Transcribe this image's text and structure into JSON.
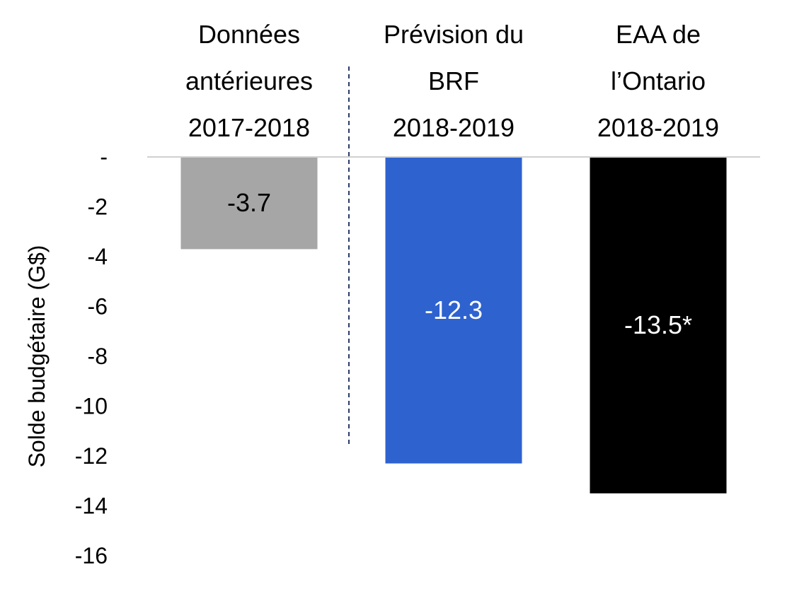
{
  "chart_data": {
    "type": "bar",
    "categories": [
      [
        "Données",
        "antérieures",
        "2017-2018"
      ],
      [
        "Prévision du",
        "BRF",
        "2018-2019"
      ],
      [
        "EAA de",
        "l’Ontario",
        "2018-2019"
      ]
    ],
    "values": [
      -3.7,
      -12.3,
      -13.5
    ],
    "data_labels": [
      "-3.7",
      "-12.3",
      "-13.5*"
    ],
    "colors": [
      "#a6a6a6",
      "#2e62cf",
      "#000000"
    ],
    "label_colors": [
      "#000000",
      "#ffffff",
      "#ffffff"
    ],
    "ylabel": "Solde budgétaire (G$)",
    "ylim": [
      -16,
      0
    ],
    "yticks": [
      0,
      -2,
      -4,
      -6,
      -8,
      -10,
      -12,
      -14,
      -16
    ],
    "ytick_labels": [
      "-",
      "-2",
      "-4",
      "-6",
      "-8",
      "-10",
      "-12",
      "-14",
      "-16"
    ],
    "grid": false,
    "legend": "none",
    "separator": "dashed vertical line between first and second category"
  }
}
